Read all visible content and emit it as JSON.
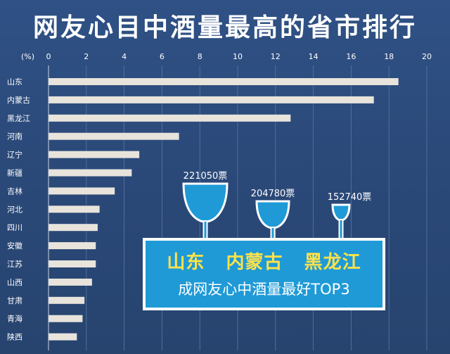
{
  "title": "网友心目中酒量最高的省市排行",
  "chart_data": {
    "type": "bar",
    "orientation": "horizontal",
    "title": "网友心目中酒量最高的省市排行",
    "unit_label": "(%)",
    "x_ticks": [
      0,
      2,
      4,
      6,
      8,
      10,
      12,
      14,
      16,
      18,
      20
    ],
    "xlim": [
      0,
      20
    ],
    "grid": true,
    "categories": [
      "山东",
      "内蒙古",
      "黑龙江",
      "河南",
      "辽宁",
      "新疆",
      "吉林",
      "河北",
      "四川",
      "安徽",
      "江苏",
      "山西",
      "甘肃",
      "青海",
      "陕西"
    ],
    "values": [
      18.5,
      17.2,
      12.8,
      6.9,
      4.8,
      4.4,
      3.5,
      2.7,
      2.6,
      2.5,
      2.5,
      2.3,
      1.9,
      1.8,
      1.5
    ],
    "colors": {
      "bar": "#e8e4dc",
      "background": "#2b4a78",
      "glass": "#1f9ad6",
      "callout": "#1f9ad6",
      "highlight": "#ffe24a"
    }
  },
  "top3": {
    "votes": [
      "221050票",
      "204780票",
      "152740票"
    ],
    "names": [
      "山东",
      "内蒙古",
      "黑龙江"
    ],
    "subtitle": "成网友心中酒量最好TOP3"
  }
}
